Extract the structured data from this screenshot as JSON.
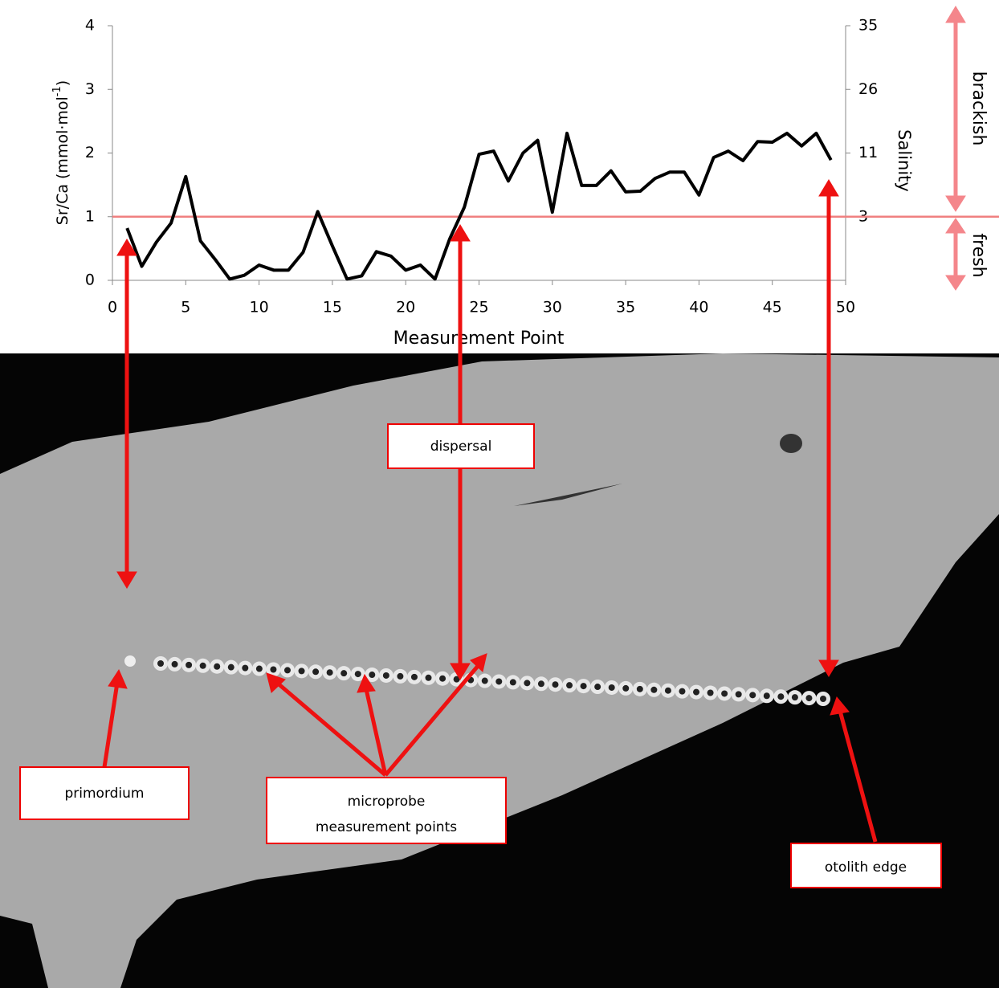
{
  "chart_data": {
    "type": "line",
    "x_label": "Measurement Point",
    "y_label": "Sr/Ca (mmol·mol",
    "y_label_superscript": "-1",
    "y_label_end": ")",
    "y2_label": "Salinity",
    "x": [
      1,
      2,
      3,
      4,
      5,
      6,
      7,
      8,
      9,
      10,
      11,
      12,
      13,
      14,
      15,
      16,
      17,
      18,
      19,
      20,
      21,
      22,
      23,
      24,
      25,
      26,
      27,
      28,
      29,
      30,
      31,
      32,
      33,
      34,
      35,
      36,
      37,
      38,
      39,
      40,
      41,
      42,
      43,
      44,
      45,
      46,
      47,
      48,
      49
    ],
    "series": [
      {
        "color": "#000000",
        "values": [
          0.82,
          0.22,
          0.6,
          0.9,
          1.63,
          0.62,
          0.33,
          0.02,
          0.08,
          0.24,
          0.16,
          0.16,
          0.44,
          1.08,
          0.54,
          0.02,
          0.07,
          0.45,
          0.38,
          0.16,
          0.24,
          0.02,
          0.65,
          1.15,
          1.98,
          2.03,
          1.56,
          2.0,
          2.2,
          1.07,
          2.31,
          1.49,
          1.49,
          1.72,
          1.39,
          1.4,
          1.6,
          1.7,
          1.7,
          1.34,
          1.93,
          2.03,
          1.88,
          2.18,
          2.17,
          2.31,
          2.11,
          2.31,
          1.89
        ]
      }
    ],
    "xlim": [
      0,
      50
    ],
    "ylim": [
      0,
      4
    ],
    "xticks": [
      0,
      5,
      10,
      15,
      20,
      25,
      30,
      35,
      40,
      45,
      50
    ],
    "yticks": [
      0,
      1,
      2,
      3,
      4
    ],
    "salinity_ticks": [
      {
        "sr_ca": 1,
        "salinity": 3
      },
      {
        "sr_ca": 2,
        "salinity": 11
      },
      {
        "sr_ca": 3,
        "salinity": 26
      },
      {
        "sr_ca": 4,
        "salinity": 35
      }
    ],
    "threshold": {
      "value": 1,
      "color": "#f08080"
    },
    "zones": [
      {
        "label": "brackish"
      },
      {
        "label": "fresh"
      }
    ]
  },
  "annotations": {
    "primordium": "primordium",
    "dispersal": "dispersal",
    "microprobe": [
      "microprobe",
      "measurement points"
    ],
    "edge": "otolith edge"
  }
}
